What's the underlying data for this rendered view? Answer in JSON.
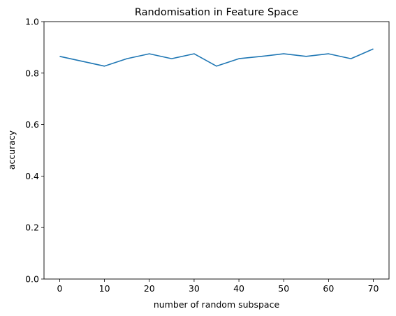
{
  "chart_data": {
    "type": "line",
    "title": "Randomisation in Feature Space",
    "xlabel": "number of random subspace",
    "ylabel": "accuracy",
    "xlim": [
      -3.5,
      73.5
    ],
    "ylim": [
      0,
      1.0
    ],
    "xticks": [
      0,
      10,
      20,
      30,
      40,
      50,
      60,
      70
    ],
    "yticks": [
      0.0,
      0.2,
      0.4,
      0.6,
      0.8,
      1.0
    ],
    "xtick_labels": [
      "0",
      "10",
      "20",
      "30",
      "40",
      "50",
      "60",
      "70"
    ],
    "ytick_labels": [
      "0.0",
      "0.2",
      "0.4",
      "0.6",
      "0.8",
      "1.0"
    ],
    "grid": false,
    "series": [
      {
        "color": "#1f77b4",
        "x": [
          0,
          5,
          10,
          15,
          20,
          25,
          30,
          35,
          40,
          45,
          50,
          55,
          60,
          65,
          70
        ],
        "y": [
          0.865,
          0.846,
          0.827,
          0.856,
          0.875,
          0.856,
          0.875,
          0.827,
          0.856,
          0.865,
          0.875,
          0.865,
          0.875,
          0.856,
          0.894
        ]
      }
    ]
  }
}
